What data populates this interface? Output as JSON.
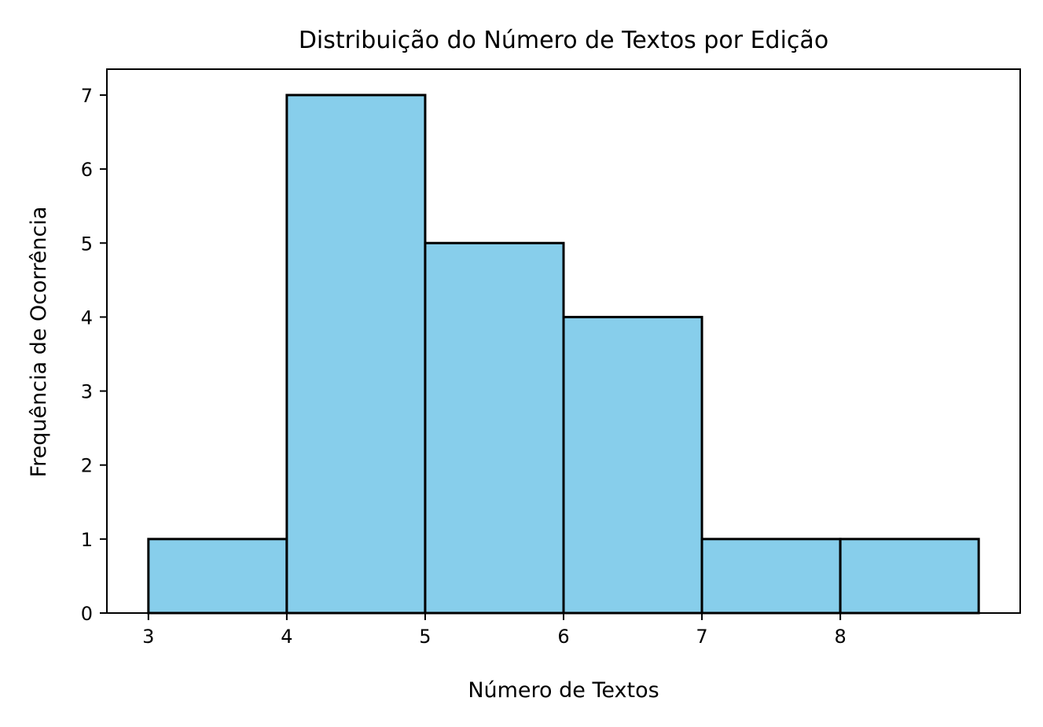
{
  "chart_data": {
    "type": "bar",
    "title": "Distribuição do Número de Textos por Edição",
    "xlabel": "Número de Textos",
    "ylabel": "Frequência de Ocorrência",
    "bins": [
      {
        "start": 3,
        "end": 4,
        "count": 1
      },
      {
        "start": 4,
        "end": 5,
        "count": 7
      },
      {
        "start": 5,
        "end": 6,
        "count": 5
      },
      {
        "start": 6,
        "end": 7,
        "count": 4
      },
      {
        "start": 7,
        "end": 8,
        "count": 1
      },
      {
        "start": 8,
        "end": 9,
        "count": 1
      }
    ],
    "x_ticks": [
      3,
      4,
      5,
      6,
      7,
      8
    ],
    "y_ticks": [
      0,
      1,
      2,
      3,
      4,
      5,
      6,
      7
    ],
    "xlim": [
      2.7,
      9.3
    ],
    "ylim": [
      0,
      7.35
    ],
    "grid": false,
    "legend": "none",
    "colors": {
      "bar_fill": "#87ceeb",
      "bar_edge": "#000000",
      "axes": "#000000",
      "background": "#ffffff"
    }
  }
}
